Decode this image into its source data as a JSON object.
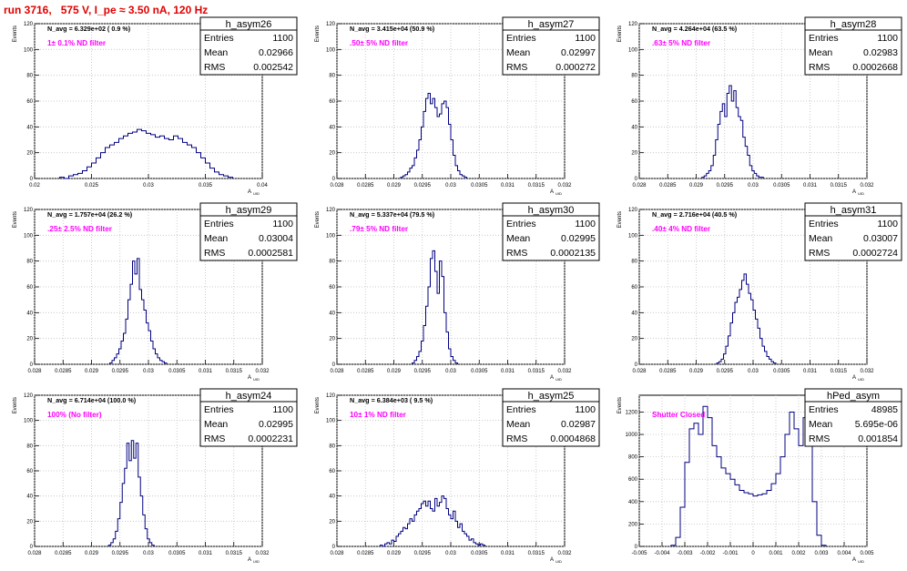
{
  "title": "run 3716,   575 V, I_pe ≈ 3.50 nA, 120 Hz",
  "colors": {
    "title": "#e00000",
    "hist": "#000080",
    "annotation": "#ff00ff",
    "grid": "#bfbfbf"
  },
  "chart_data": [
    {
      "type": "bar",
      "name": "h_asym26",
      "stats": {
        "entries": "1100",
        "mean": "0.02966",
        "rms": "0.002542"
      },
      "navg": "N_avg = 6.329e+02 ( 0.9 %)",
      "note": "1± 0.1% ND filter",
      "xlabel": "A",
      "xlabel_sub": "UID",
      "ylabel": "Events",
      "xlim": [
        0.02,
        0.04
      ],
      "ylim": [
        0,
        120
      ],
      "xticks": [
        "0.02",
        "0.025",
        "0.03",
        "0.035",
        "0.04"
      ],
      "yticks": [
        "0",
        "20",
        "40",
        "60",
        "80",
        "100",
        "120"
      ],
      "bin_width": 0.0004,
      "bins_start": 0.0222,
      "values": [
        1,
        0,
        2,
        3,
        4,
        6,
        9,
        12,
        16,
        20,
        24,
        26,
        28,
        31,
        33,
        35,
        36,
        38,
        37,
        35,
        34,
        32,
        33,
        31,
        30,
        33,
        31,
        28,
        26,
        24,
        20,
        16,
        12,
        8,
        5,
        3,
        2,
        1
      ]
    },
    {
      "type": "bar",
      "name": "h_asym27",
      "stats": {
        "entries": "1100",
        "mean": "0.02997",
        "rms": "0.000272"
      },
      "navg": "N_avg = 3.415e+04 (50.9 %)",
      "note": ".50± 5% ND filter",
      "xlabel": "A",
      "xlabel_sub": "UID",
      "ylabel": "Events",
      "xlim": [
        0.028,
        0.032
      ],
      "ylim": [
        0,
        120
      ],
      "xticks": [
        "0.028",
        "0.0285",
        "0.029",
        "0.0295",
        "0.03",
        "0.0305",
        "0.031",
        "0.0315",
        "0.032"
      ],
      "yticks": [
        "0",
        "20",
        "40",
        "60",
        "80",
        "100",
        "120"
      ],
      "bin_width": 4e-05,
      "bins_start": 0.02912,
      "values": [
        1,
        2,
        3,
        5,
        8,
        10,
        16,
        22,
        30,
        40,
        52,
        62,
        66,
        58,
        62,
        55,
        48,
        50,
        58,
        60,
        55,
        42,
        30,
        18,
        10,
        6,
        3,
        2,
        1
      ]
    },
    {
      "type": "bar",
      "name": "h_asym28",
      "stats": {
        "entries": "1100",
        "mean": "0.02983",
        "rms": "0.0002668"
      },
      "navg": "N_avg = 4.264e+04 (63.5 %)",
      "note": ".63± 5% ND filter",
      "xlabel": "A",
      "xlabel_sub": "UID",
      "ylabel": "Events",
      "xlim": [
        0.028,
        0.032
      ],
      "ylim": [
        0,
        120
      ],
      "xticks": [
        "0.028",
        "0.0285",
        "0.029",
        "0.0295",
        "0.03",
        "0.0305",
        "0.031",
        "0.0315",
        "0.032"
      ],
      "yticks": [
        "0",
        "20",
        "40",
        "60",
        "80",
        "100",
        "120"
      ],
      "bin_width": 4e-05,
      "bins_start": 0.0291,
      "values": [
        1,
        2,
        4,
        6,
        10,
        18,
        30,
        42,
        52,
        58,
        48,
        66,
        72,
        60,
        68,
        55,
        48,
        45,
        32,
        25,
        18,
        10,
        6,
        4,
        2,
        1,
        1
      ]
    },
    {
      "type": "bar",
      "name": "h_asym29",
      "stats": {
        "entries": "1100",
        "mean": "0.03004",
        "rms": "0.0002581"
      },
      "navg": "N_avg = 1.757e+04 (26.2 %)",
      "note": ".25± 2.5% ND filter",
      "xlabel": "A",
      "xlabel_sub": "UID",
      "ylabel": "Events",
      "xlim": [
        0.028,
        0.032
      ],
      "ylim": [
        0,
        120
      ],
      "xticks": [
        "0.028",
        "0.0285",
        "0.029",
        "0.0295",
        "0.03",
        "0.0305",
        "0.031",
        "0.0315",
        "0.032"
      ],
      "yticks": [
        "0",
        "20",
        "40",
        "60",
        "80",
        "100",
        "120"
      ],
      "bin_width": 4e-05,
      "bins_start": 0.02932,
      "values": [
        1,
        3,
        5,
        8,
        12,
        18,
        24,
        35,
        50,
        62,
        80,
        70,
        82,
        58,
        50,
        42,
        32,
        26,
        18,
        12,
        8,
        5,
        3,
        2,
        1
      ]
    },
    {
      "type": "bar",
      "name": "h_asym30",
      "stats": {
        "entries": "1100",
        "mean": "0.02995",
        "rms": "0.0002135"
      },
      "navg": "N_avg = 5.337e+04 (79.5 %)",
      "note": ".79± 5% ND filter",
      "xlabel": "A",
      "xlabel_sub": "UID",
      "ylabel": "Events",
      "xlim": [
        0.028,
        0.032
      ],
      "ylim": [
        0,
        120
      ],
      "xticks": [
        "0.028",
        "0.0285",
        "0.029",
        "0.0295",
        "0.03",
        "0.0305",
        "0.031",
        "0.0315",
        "0.032"
      ],
      "yticks": [
        "0",
        "20",
        "40",
        "60",
        "80",
        "100",
        "120"
      ],
      "bin_width": 4e-05,
      "bins_start": 0.02932,
      "values": [
        1,
        3,
        6,
        10,
        18,
        30,
        45,
        60,
        82,
        88,
        72,
        55,
        80,
        68,
        40,
        25,
        12,
        6,
        3,
        1
      ]
    },
    {
      "type": "bar",
      "name": "h_asym31",
      "stats": {
        "entries": "1100",
        "mean": "0.03007",
        "rms": "0.0002724"
      },
      "navg": "N_avg = 2.716e+04 (40.5 %)",
      "note": ".40± 4% ND filter",
      "xlabel": "A",
      "xlabel_sub": "UID",
      "ylabel": "Events",
      "xlim": [
        0.028,
        0.032
      ],
      "ylim": [
        0,
        120
      ],
      "xticks": [
        "0.028",
        "0.0285",
        "0.029",
        "0.0295",
        "0.03",
        "0.0305",
        "0.031",
        "0.0315",
        "0.032"
      ],
      "yticks": [
        "0",
        "20",
        "40",
        "60",
        "80",
        "100",
        "120"
      ],
      "bin_width": 4e-05,
      "bins_start": 0.02936,
      "values": [
        1,
        2,
        4,
        8,
        14,
        22,
        32,
        40,
        48,
        52,
        58,
        65,
        70,
        62,
        55,
        50,
        42,
        35,
        28,
        20,
        14,
        10,
        6,
        4,
        2,
        1
      ]
    },
    {
      "type": "bar",
      "name": "h_asym24",
      "stats": {
        "entries": "1100",
        "mean": "0.02995",
        "rms": "0.0002231"
      },
      "navg": "N_avg = 6.714e+04 (100.0 %)",
      "note": "100% (No filter)",
      "xlabel": "A",
      "xlabel_sub": "UID",
      "ylabel": "Events",
      "xlim": [
        0.028,
        0.032
      ],
      "ylim": [
        0,
        120
      ],
      "xticks": [
        "0.028",
        "0.0285",
        "0.029",
        "0.0295",
        "0.03",
        "0.0305",
        "0.031",
        "0.0315",
        "0.032"
      ],
      "yticks": [
        "0",
        "20",
        "40",
        "60",
        "80",
        "100",
        "120"
      ],
      "bin_width": 4e-05,
      "bins_start": 0.0293,
      "values": [
        1,
        3,
        6,
        12,
        22,
        35,
        50,
        62,
        82,
        68,
        84,
        70,
        82,
        55,
        40,
        25,
        14,
        6,
        3,
        1
      ]
    },
    {
      "type": "bar",
      "name": "h_asym25",
      "stats": {
        "entries": "1100",
        "mean": "0.02987",
        "rms": "0.0004868"
      },
      "navg": "N_avg = 6.384e+03 ( 9.5 %)",
      "note": "10± 1% ND filter",
      "xlabel": "A",
      "xlabel_sub": "UID",
      "ylabel": "Events",
      "xlim": [
        0.028,
        0.032
      ],
      "ylim": [
        0,
        120
      ],
      "xticks": [
        "0.028",
        "0.0285",
        "0.029",
        "0.0295",
        "0.03",
        "0.0305",
        "0.031",
        "0.0315",
        "0.032"
      ],
      "yticks": [
        "0",
        "20",
        "40",
        "60",
        "80",
        "100",
        "120"
      ],
      "bin_width": 4e-05,
      "bins_start": 0.02876,
      "values": [
        1,
        0,
        2,
        3,
        2,
        5,
        4,
        8,
        10,
        12,
        15,
        14,
        18,
        22,
        20,
        25,
        28,
        30,
        34,
        36,
        32,
        36,
        30,
        28,
        38,
        32,
        35,
        40,
        38,
        30,
        25,
        22,
        28,
        20,
        15,
        18,
        12,
        10,
        8,
        5,
        6,
        3,
        2,
        1,
        2,
        1
      ]
    },
    {
      "type": "bar",
      "name": "hPed_asym",
      "stats": {
        "entries": "48985",
        "mean": "5.695e-06",
        "rms": "0.001854"
      },
      "navg": "",
      "note": "Shutter Closed",
      "xlabel": "A",
      "xlabel_sub": "UID",
      "ylabel": "Events",
      "xlim": [
        -0.005,
        0.005
      ],
      "ylim": [
        0,
        1350
      ],
      "xticks": [
        "-0.005",
        "-0.004",
        "-0.003",
        "-0.002",
        "-0.001",
        "0",
        "0.001",
        "0.002",
        "0.003",
        "0.004",
        "0.005"
      ],
      "yticks": [
        "0",
        "200",
        "400",
        "600",
        "800",
        "1000",
        "1200"
      ],
      "bin_width": 0.0002,
      "bins_start": -0.0036,
      "values": [
        10,
        80,
        350,
        750,
        1050,
        1100,
        1000,
        1250,
        1150,
        900,
        800,
        700,
        650,
        600,
        550,
        500,
        480,
        470,
        450,
        460,
        470,
        500,
        560,
        650,
        800,
        1000,
        1200,
        1050,
        900,
        1150,
        1000,
        400,
        100,
        10
      ]
    }
  ]
}
